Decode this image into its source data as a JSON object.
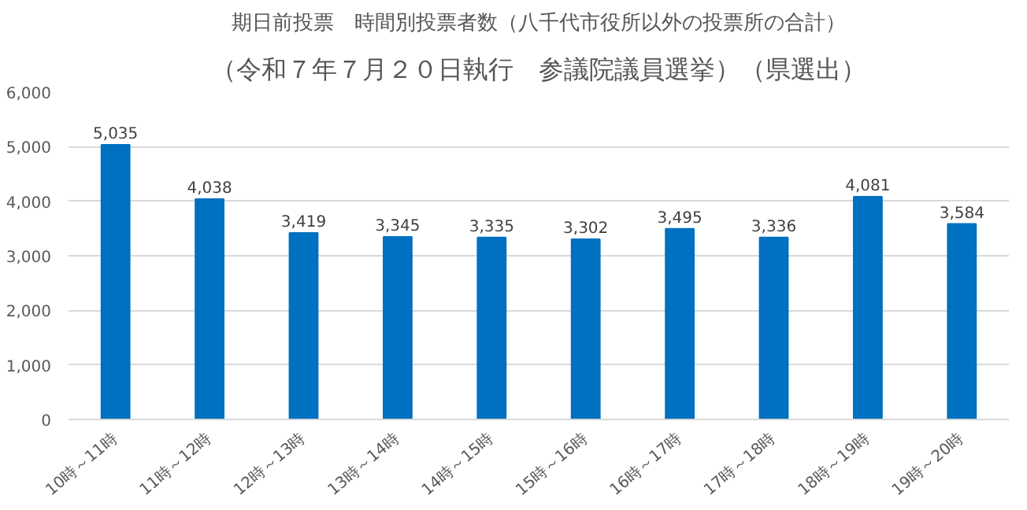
{
  "chart_data": {
    "type": "bar",
    "title": "期日前投票　時間別投票者数（八千代市役所以外の投票所の合計）",
    "subtitle": "（令和７年７月２０日執行　参議院議員選挙）（県選出）",
    "categories": [
      "10時～11時",
      "11時～12時",
      "12時～13時",
      "13時～14時",
      "14時～15時",
      "15時～16時",
      "16時～17時",
      "17時～18時",
      "18時～19時",
      "19時～20時"
    ],
    "values": [
      5035,
      4038,
      3419,
      3345,
      3335,
      3302,
      3495,
      3336,
      4081,
      3584
    ],
    "value_labels": [
      "5,035",
      "4,038",
      "3,419",
      "3,345",
      "3,335",
      "3,302",
      "3,495",
      "3,336",
      "4,081",
      "3,584"
    ],
    "color": "#0070c0",
    "grid": "y",
    "ylim": [
      0,
      6000
    ],
    "yticks": [
      {
        "value": 0,
        "label": "0"
      },
      {
        "value": 1000,
        "label": "1,000"
      },
      {
        "value": 2000,
        "label": "2,000"
      },
      {
        "value": 3000,
        "label": "3,000"
      },
      {
        "value": 4000,
        "label": "4,000"
      },
      {
        "value": 5000,
        "label": "5,000"
      },
      {
        "value": 6000,
        "label": "6,000"
      }
    ]
  }
}
